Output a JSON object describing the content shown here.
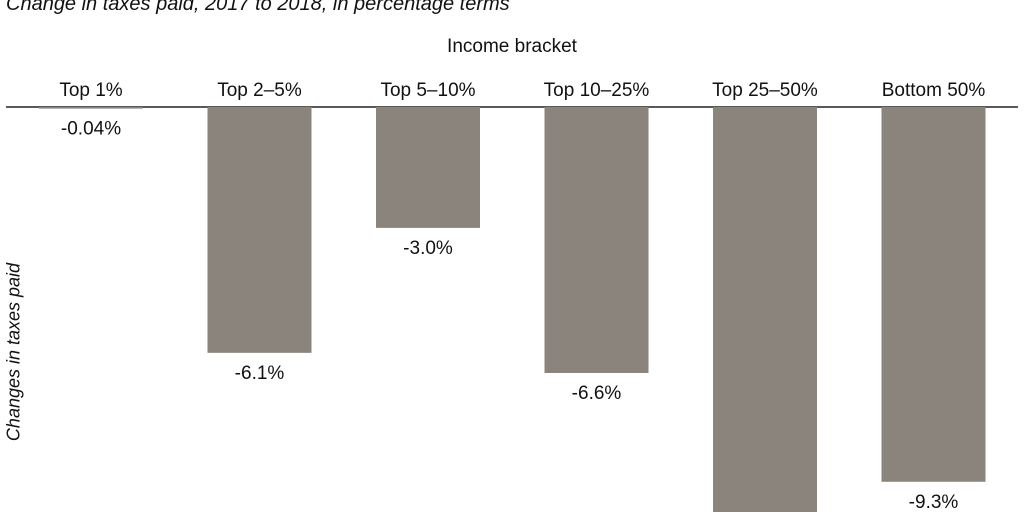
{
  "caption": "Change in taxes paid, 2017 to 2018, in percentage terms",
  "colors": {
    "bar": "#8b847d",
    "axis": "#222222",
    "text": "#111111"
  },
  "chart_data": {
    "type": "bar",
    "title": "",
    "xlabel": "Income bracket",
    "ylabel": "Changes in taxes paid",
    "categories": [
      "Top 1%",
      "Top 2–5%",
      "Top 5–10%",
      "Top 10–25%",
      "Top 25–50%",
      "Bottom 50%"
    ],
    "values": [
      -0.04,
      -6.1,
      -3.0,
      -6.6,
      -10.2,
      -9.3
    ],
    "data_labels": [
      "-0.04%",
      "-6.1%",
      "-3.0%",
      "-6.6%",
      "",
      "-9.3%"
    ],
    "ylim": [
      -12,
      0
    ],
    "grid": false,
    "legend": "none"
  }
}
